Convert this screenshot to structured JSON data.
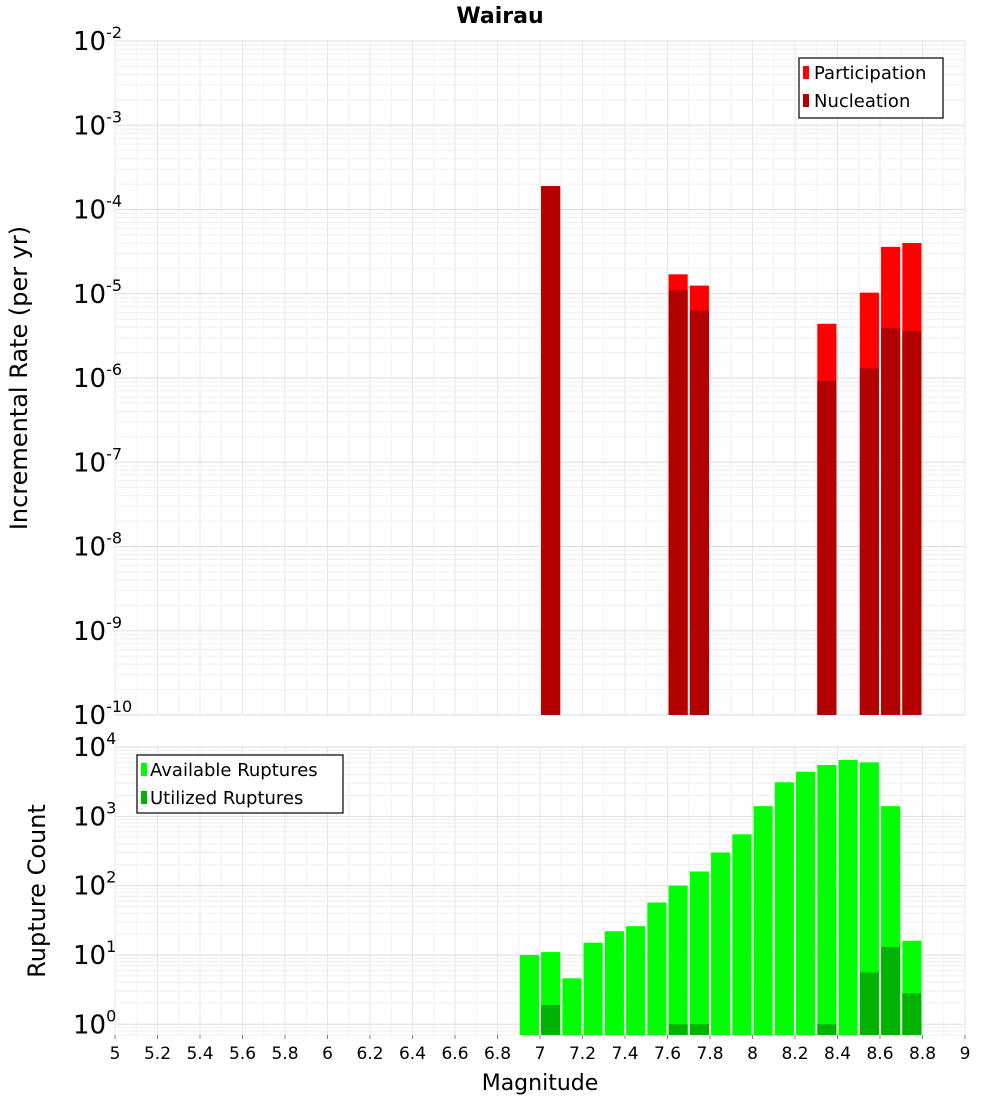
{
  "chart_data": [
    {
      "type": "bar",
      "title": "Wairau",
      "xlabel": "",
      "ylabel": "Incremental Rate (per yr)",
      "yscale": "log",
      "ylim": [
        1e-10,
        0.01
      ],
      "xlim": [
        5,
        9
      ],
      "bar_width": 0.09,
      "y_tick_base": "10",
      "y_tick_exponents": [
        "-10",
        "-9",
        "-8",
        "-7",
        "-6",
        "-5",
        "-4",
        "-3",
        "-2"
      ],
      "grid": true,
      "legend_position": "top-right",
      "series": [
        {
          "name": "Participation",
          "color": "#ff0000",
          "x": [
            7.05,
            7.65,
            7.75,
            8.35,
            8.55,
            8.65,
            8.75
          ],
          "values": [
            0.00019,
            1.7e-05,
            1.25e-05,
            4.4e-06,
            1.03e-05,
            3.6e-05,
            4e-05
          ]
        },
        {
          "name": "Nucleation",
          "color": "#b30000",
          "x": [
            7.05,
            7.65,
            7.75,
            8.35,
            8.55,
            8.65,
            8.75
          ],
          "values": [
            0.00019,
            1.1e-05,
            6.3e-06,
            9.2e-07,
            1.3e-06,
            3.9e-06,
            3.6e-06
          ]
        }
      ]
    },
    {
      "type": "bar",
      "title": "",
      "xlabel": "Magnitude",
      "ylabel": "Rupture Count",
      "yscale": "log",
      "ylim": [
        0.7,
        10000
      ],
      "xlim": [
        5,
        9
      ],
      "bar_width": 0.09,
      "x_ticks": [
        "5",
        "5.2",
        "5.4",
        "5.6",
        "5.8",
        "6",
        "6.2",
        "6.4",
        "6.6",
        "6.8",
        "7",
        "7.2",
        "7.4",
        "7.6",
        "7.8",
        "8",
        "8.2",
        "8.4",
        "8.6",
        "8.8",
        "9"
      ],
      "y_tick_base": "10",
      "y_tick_exponents": [
        "0",
        "1",
        "2",
        "3",
        "4"
      ],
      "grid": true,
      "legend_position": "top-left",
      "series": [
        {
          "name": "Available Ruptures",
          "color": "#00ff00",
          "x": [
            6.95,
            7.05,
            7.15,
            7.25,
            7.35,
            7.45,
            7.55,
            7.65,
            7.75,
            7.85,
            7.95,
            8.05,
            8.15,
            8.25,
            8.35,
            8.45,
            8.55,
            8.65,
            8.75
          ],
          "values": [
            10,
            11,
            4.6,
            15,
            22,
            26,
            57,
            100,
            160,
            300,
            550,
            1400,
            3100,
            4400,
            5500,
            6500,
            6000,
            1400,
            16
          ]
        },
        {
          "name": "Utilized Ruptures",
          "color": "#00b300",
          "x": [
            7.05,
            7.65,
            7.75,
            8.35,
            8.55,
            8.65,
            8.75
          ],
          "values": [
            1.9,
            1,
            1,
            1,
            5.6,
            13,
            2.8
          ]
        }
      ]
    }
  ]
}
